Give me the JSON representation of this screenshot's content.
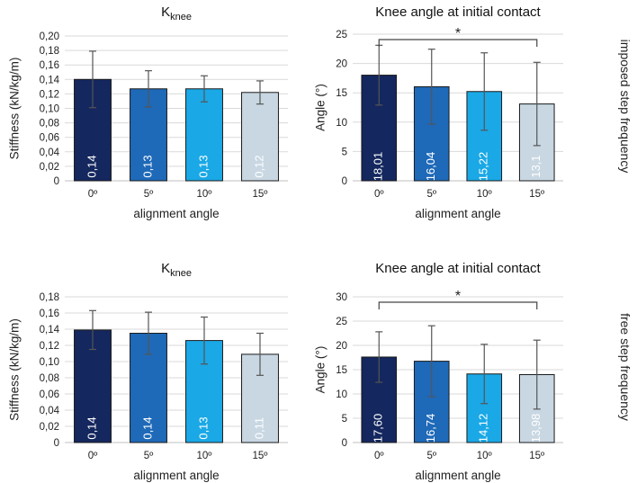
{
  "colors": [
    "#14275e",
    "#1e69b8",
    "#1aa8e6",
    "#c8d7e2"
  ],
  "row_labels": [
    "imposed step frequency",
    "free step frequency"
  ],
  "chart_data": [
    {
      "type": "bar",
      "title": "K",
      "title_sub": "knee",
      "xlabel": "alignment angle",
      "ylabel": "Stiffness (kN/kg/m)",
      "categories": [
        "0º",
        "5º",
        "10º",
        "15º"
      ],
      "values": [
        0.14,
        0.127,
        0.127,
        0.122
      ],
      "errors": [
        0.039,
        0.025,
        0.018,
        0.016
      ],
      "value_labels": [
        "0,14",
        "0,13",
        "0,13",
        "0,12"
      ],
      "ylim": [
        0,
        0.2
      ],
      "yticks": [
        "0",
        "0,02",
        "0,04",
        "0,06",
        "0,08",
        "0,10",
        "0,12",
        "0,14",
        "0,16",
        "0,18",
        "0,20"
      ],
      "grid": true,
      "significance": null
    },
    {
      "type": "bar",
      "title": "Knee angle at initial contact",
      "title_sub": "",
      "xlabel": "alignment angle",
      "ylabel": "Angle (°)",
      "categories": [
        "0º",
        "5º",
        "10º",
        "15º"
      ],
      "values": [
        18.01,
        16.04,
        15.22,
        13.1
      ],
      "errors": [
        5.1,
        6.4,
        6.6,
        7.1
      ],
      "value_labels": [
        "18,01",
        "16,04",
        "15,22",
        "13,1"
      ],
      "ylim": [
        0,
        25
      ],
      "yticks": [
        "0",
        "5",
        "10",
        "15",
        "20",
        "25"
      ],
      "grid": true,
      "significance": {
        "label": "*",
        "from": 0,
        "to": 3
      }
    },
    {
      "type": "bar",
      "title": "K",
      "title_sub": "knee",
      "xlabel": "alignment angle",
      "ylabel": "Stiffness (kN/kg/m)",
      "categories": [
        "0º",
        "5º",
        "10º",
        "15º"
      ],
      "values": [
        0.139,
        0.135,
        0.126,
        0.109
      ],
      "errors": [
        0.024,
        0.026,
        0.029,
        0.026
      ],
      "value_labels": [
        "0,14",
        "0,14",
        "0,13",
        "0,11"
      ],
      "ylim": [
        0,
        0.18
      ],
      "yticks": [
        "0",
        "0,02",
        "0,04",
        "0,06",
        "0,08",
        "0,10",
        "0,12",
        "0,14",
        "0,16",
        "0,18"
      ],
      "grid": true,
      "significance": null
    },
    {
      "type": "bar",
      "title": "Knee angle at initial contact",
      "title_sub": "",
      "xlabel": "alignment angle",
      "ylabel": "Angle (°)",
      "categories": [
        "0º",
        "5º",
        "10º",
        "15º"
      ],
      "values": [
        17.6,
        16.74,
        14.12,
        13.98
      ],
      "errors": [
        5.2,
        7.3,
        6.1,
        7.1
      ],
      "value_labels": [
        "17,60",
        "16,74",
        "14,12",
        "13,98"
      ],
      "ylim": [
        0,
        30
      ],
      "yticks": [
        "0",
        "5",
        "10",
        "15",
        "20",
        "25",
        "30"
      ],
      "grid": true,
      "significance": {
        "label": "*",
        "from": 0,
        "to": 3
      }
    }
  ]
}
